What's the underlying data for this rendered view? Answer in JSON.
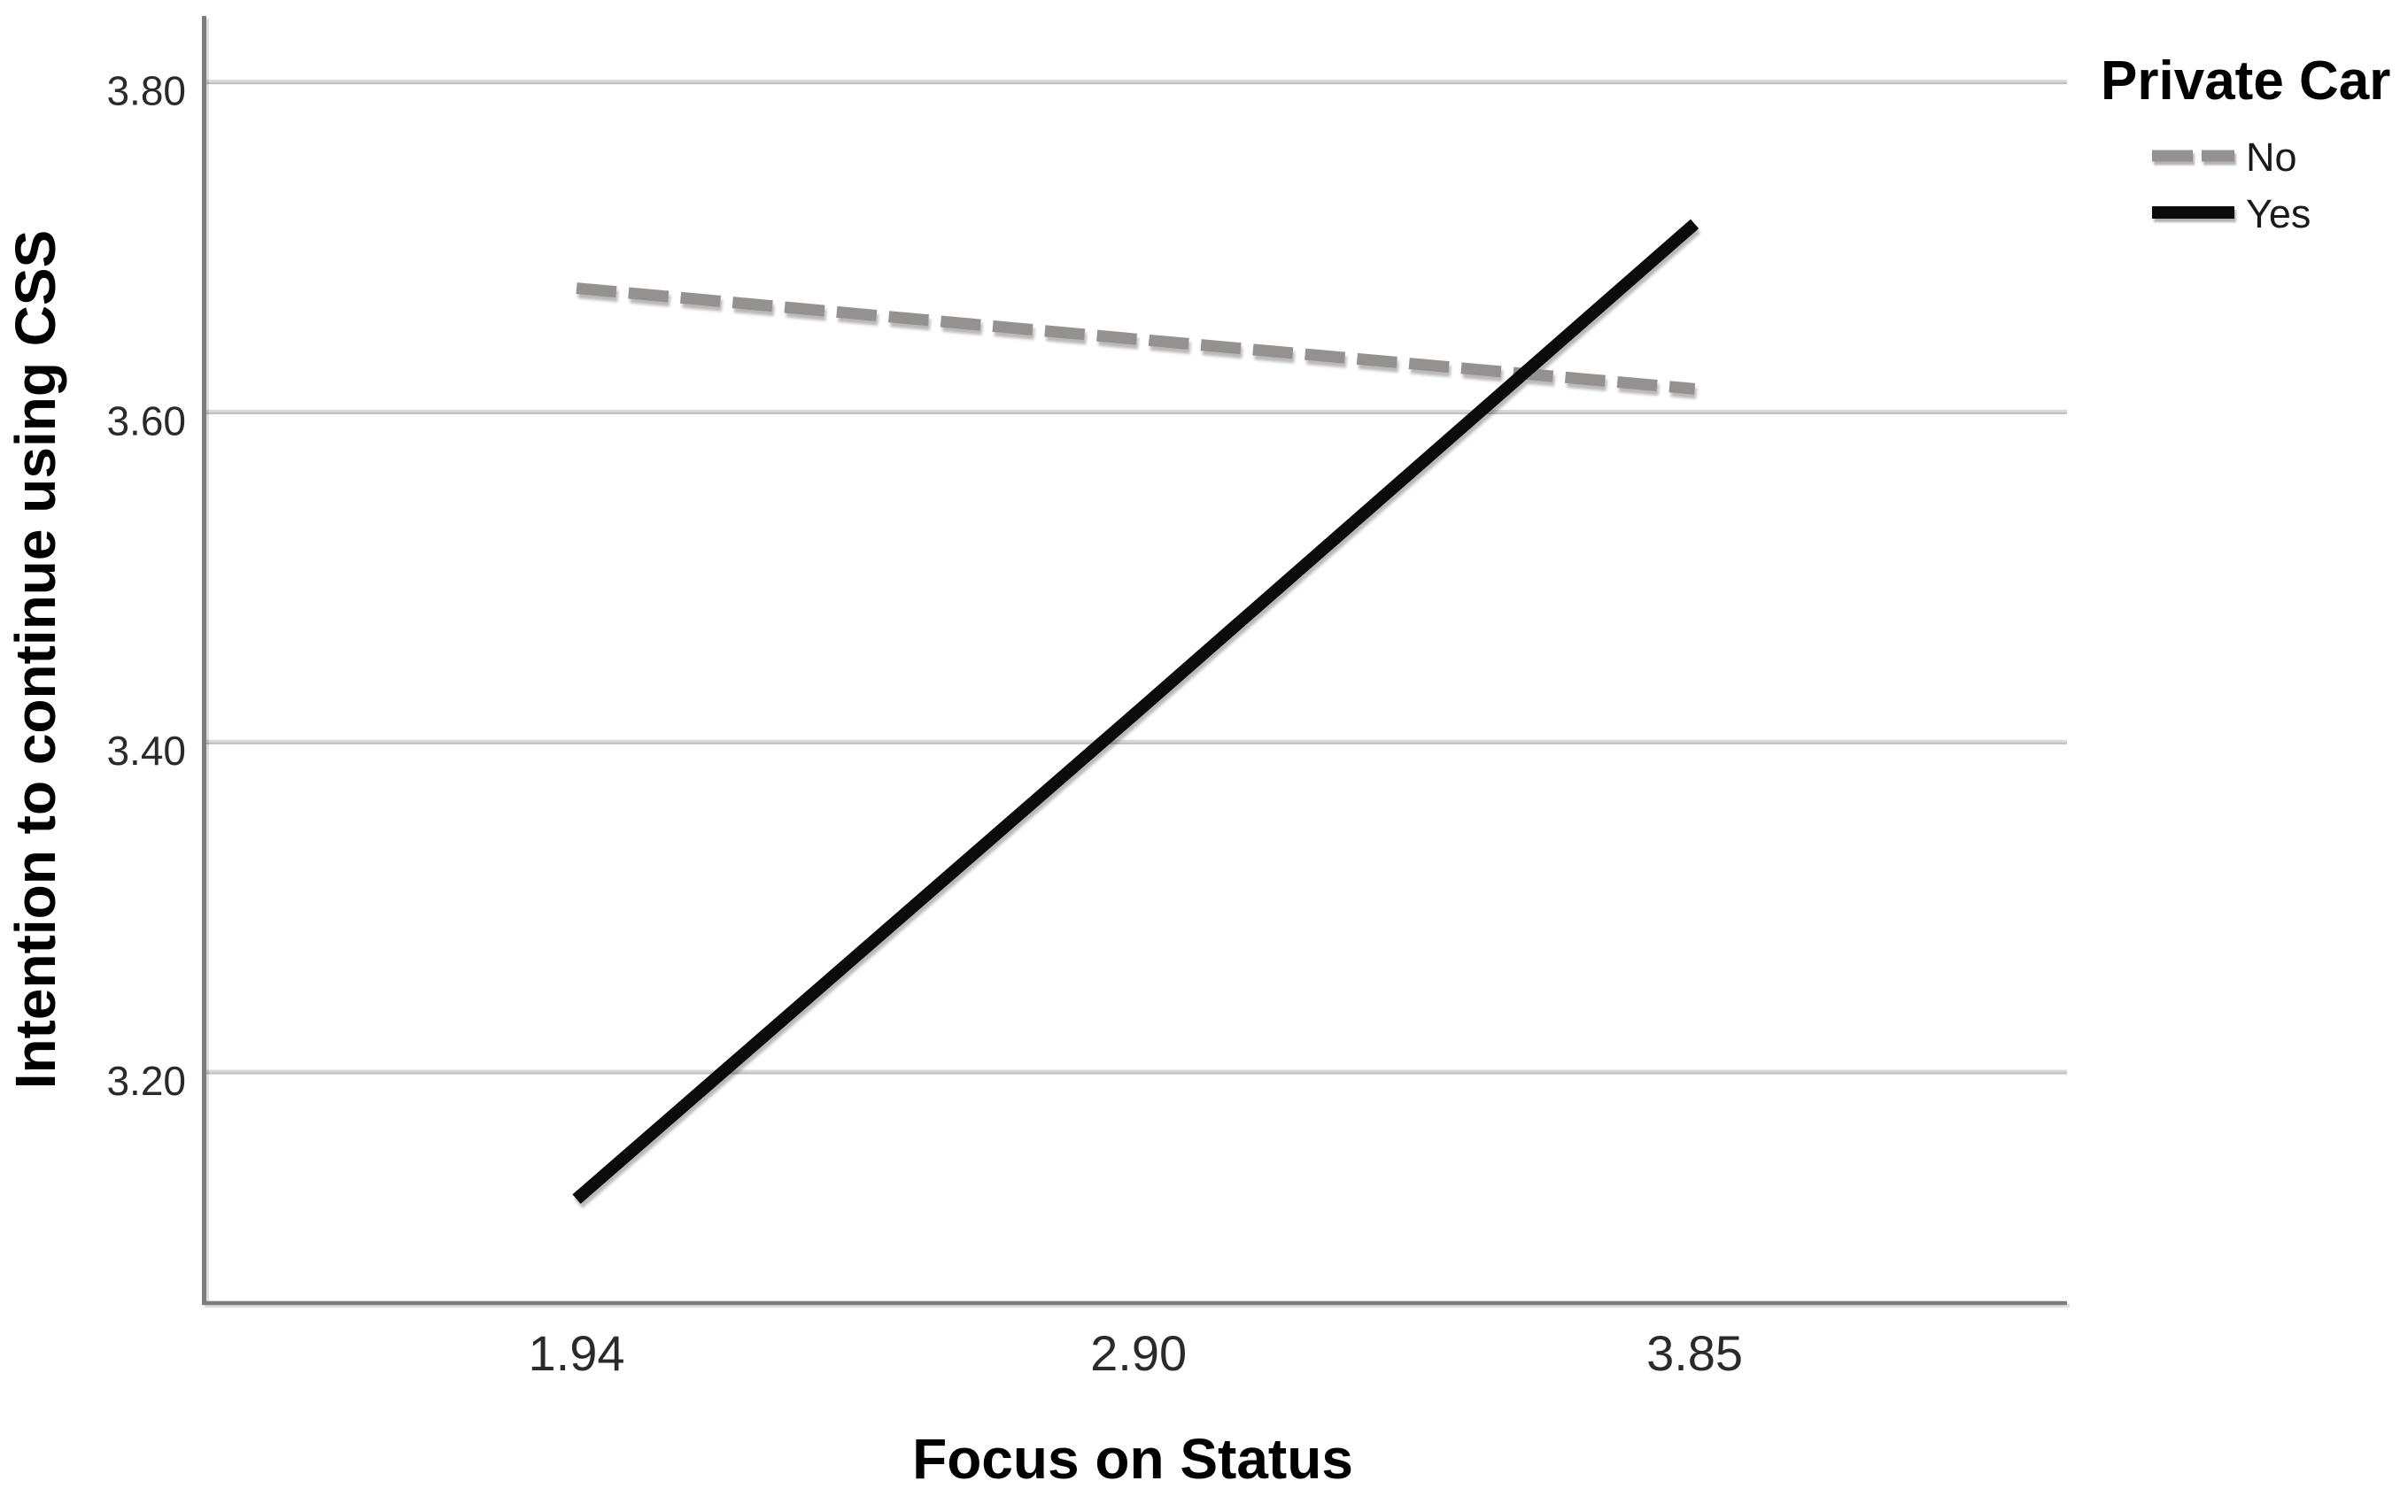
{
  "figure": {
    "background": "#ffffff"
  },
  "chart_data": {
    "type": "line",
    "title": "",
    "xlabel": "Focus on Status",
    "ylabel": "Intention to continue using CSS",
    "x": [
      1.94,
      2.9,
      3.85
    ],
    "xtick_labels": [
      "1.94",
      "2.90",
      "3.85"
    ],
    "ytick_values": [
      3.8,
      3.6,
      3.4,
      3.2
    ],
    "ytick_labels": [
      "3.80",
      "3.60",
      "3.40",
      "3.20"
    ],
    "xlim": [
      1.3,
      4.48
    ],
    "ylim": [
      3.06,
      3.84
    ],
    "grid": "horizontal-only",
    "series": [
      {
        "name": "No",
        "style": "dashed",
        "color": "#949190",
        "values": [
          3.675,
          3.644,
          3.614
        ]
      },
      {
        "name": "Yes",
        "style": "solid",
        "color": "#0b0b0b",
        "values": [
          3.123,
          3.419,
          3.714
        ]
      }
    ],
    "legend": {
      "title": "Private Car",
      "position": "top-right",
      "entries": [
        {
          "label": "No",
          "style": "dashed",
          "color": "#949190"
        },
        {
          "label": "Yes",
          "style": "solid",
          "color": "#0b0b0b"
        }
      ]
    }
  },
  "colors": {
    "axis": "#7d7d7d",
    "gridline": "#d8d8d8",
    "gridline_edge": "#bdbdbd",
    "tick_text": "#2a2a2a",
    "title_text": "#000000"
  }
}
